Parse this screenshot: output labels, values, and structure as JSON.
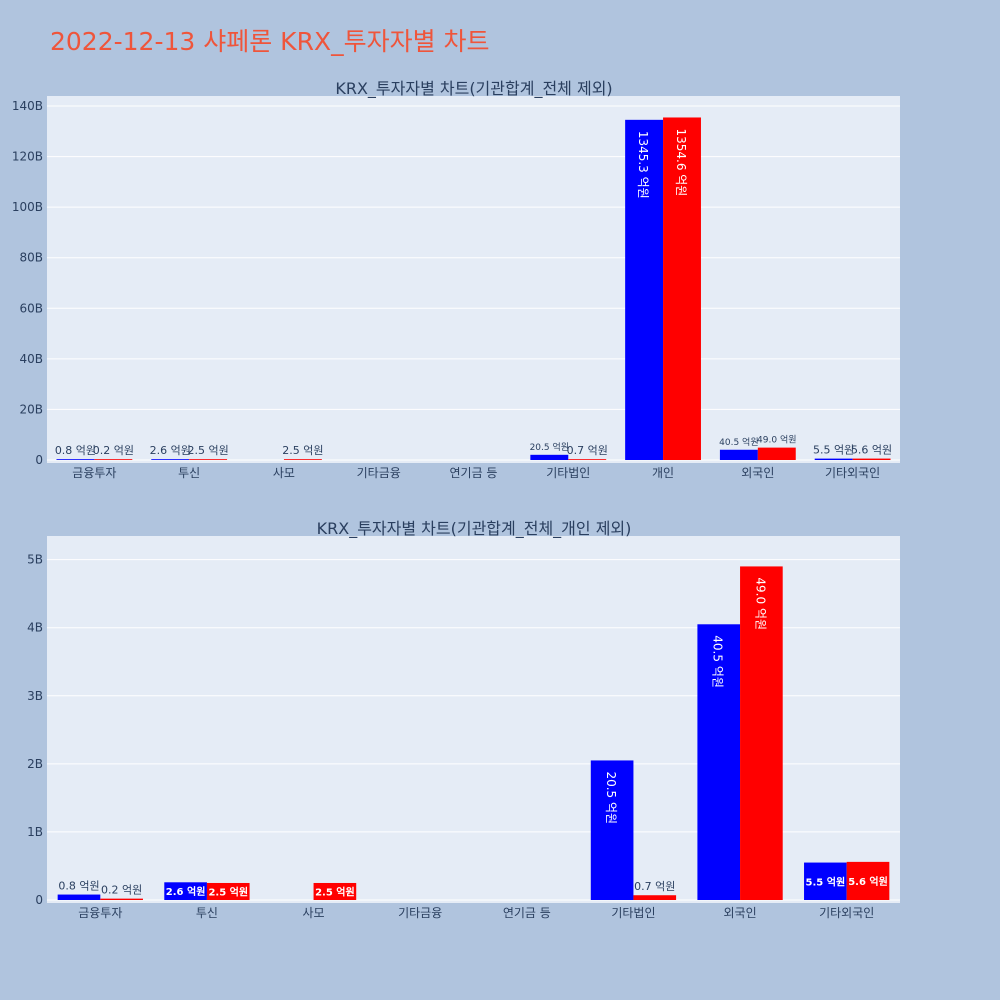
{
  "title": "2022-12-13 샤페론 KRX_투자자별 차트",
  "colors": {
    "page_bg": "#b0c4de",
    "plot_bg": "#e5ecf6",
    "title": "#ef553b",
    "series_a": "#0000ff",
    "series_b": "#ff0000",
    "axis_text": "#2a3f5f",
    "grid": "#ffffff"
  },
  "chart_data": [
    {
      "type": "bar",
      "title": "KRX_투자자별 차트(기관합계_전체 제외)",
      "categories": [
        "금융투자",
        "투신",
        "사모",
        "기타금융",
        "연기금 등",
        "기타법인",
        "개인",
        "외국인",
        "기타외국인"
      ],
      "ylim": [
        0,
        140
      ],
      "yticks": [
        "0",
        "20B",
        "40B",
        "60B",
        "80B",
        "100B",
        "120B",
        "140B"
      ],
      "ytick_values": [
        0,
        20,
        40,
        60,
        80,
        100,
        120,
        140
      ],
      "y_unit": "B",
      "grid": true,
      "series": [
        {
          "color": "#0000ff",
          "values": [
            0.08,
            0.26,
            null,
            null,
            null,
            2.05,
            134.53,
            4.05,
            0.55
          ],
          "labels": [
            "0.8 억원",
            "2.6 억원",
            "",
            "",
            "",
            "20.5 억원",
            "1345.3 억원",
            "40.5 억원",
            "5.5 억원"
          ]
        },
        {
          "color": "#ff0000",
          "values": [
            0.02,
            0.25,
            0.25,
            null,
            null,
            0.07,
            135.46,
            4.9,
            0.56
          ],
          "labels": [
            "0.2 억원",
            "2.5 억원",
            "2.5 억원",
            "",
            "",
            "0.7 억원",
            "1354.6 억원",
            "49.0 억원",
            "5.6 억원"
          ]
        }
      ]
    },
    {
      "type": "bar",
      "title": "KRX_투자자별 차트(기관합계_전체_개인 제외)",
      "categories": [
        "금융투자",
        "투신",
        "사모",
        "기타금융",
        "연기금 등",
        "기타법인",
        "외국인",
        "기타외국인"
      ],
      "ylim": [
        0,
        5.2
      ],
      "yticks": [
        "0",
        "1B",
        "2B",
        "3B",
        "4B",
        "5B"
      ],
      "ytick_values": [
        0,
        1,
        2,
        3,
        4,
        5
      ],
      "y_unit": "B",
      "grid": true,
      "series": [
        {
          "color": "#0000ff",
          "values": [
            0.08,
            0.26,
            null,
            null,
            null,
            2.05,
            4.05,
            0.55
          ],
          "labels": [
            "0.8 억원",
            "2.6 억원",
            "",
            "",
            "",
            "20.5 억원",
            "40.5 억원",
            "5.5 억원"
          ]
        },
        {
          "color": "#ff0000",
          "values": [
            0.02,
            0.25,
            0.25,
            null,
            null,
            0.07,
            4.9,
            0.56
          ],
          "labels": [
            "0.2 억원",
            "2.5 억원",
            "2.5 억원",
            "",
            "",
            "0.7 억원",
            "49.0 억원",
            "5.6 억원"
          ]
        }
      ]
    }
  ]
}
